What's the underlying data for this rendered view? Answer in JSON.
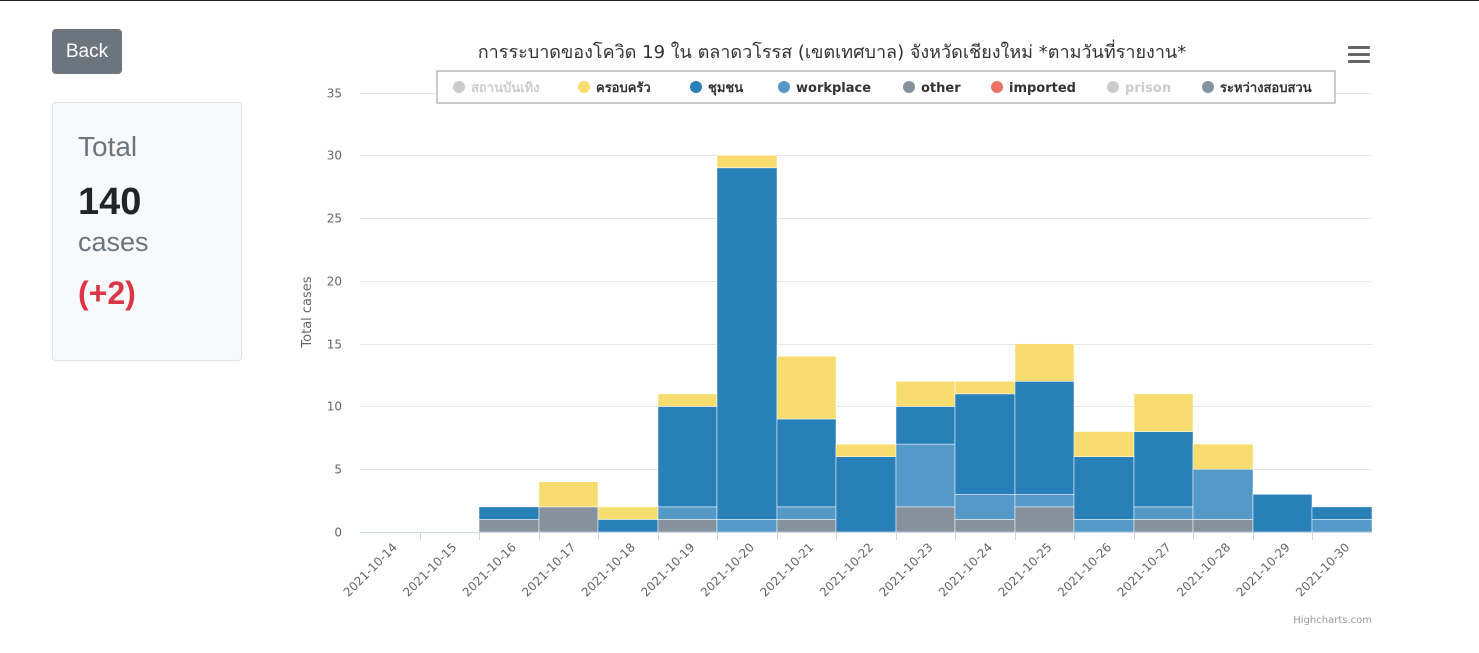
{
  "back_button": {
    "label": "Back"
  },
  "summary": {
    "label": "Total",
    "value": "140",
    "unit": "cases",
    "delta": "(+2)"
  },
  "credit": "Highcharts.com",
  "chart_data": {
    "type": "bar",
    "stacked": true,
    "title": "การระบาดของโควิด 19 ใน ตลาดวโรรส (เขตเทศบาล) จังหวัดเชียงใหม่ *ตามวันที่รายงาน*",
    "xlabel": "",
    "ylabel": "Total cases",
    "ylim": [
      0,
      35
    ],
    "yticks": [
      0,
      5,
      10,
      15,
      20,
      25,
      30,
      35
    ],
    "grid": true,
    "legend_position": "top",
    "categories": [
      "2021-10-14",
      "2021-10-15",
      "2021-10-16",
      "2021-10-17",
      "2021-10-18",
      "2021-10-19",
      "2021-10-20",
      "2021-10-21",
      "2021-10-22",
      "2021-10-23",
      "2021-10-24",
      "2021-10-25",
      "2021-10-26",
      "2021-10-27",
      "2021-10-28",
      "2021-10-29",
      "2021-10-30"
    ],
    "series": [
      {
        "name": "สถานบันเทิง",
        "color": "#cccccc",
        "visible": false,
        "values": [
          0,
          0,
          0,
          0,
          0,
          0,
          0,
          0,
          0,
          0,
          0,
          0,
          0,
          0,
          0,
          0,
          0
        ]
      },
      {
        "name": "ครอบครัว",
        "color": "#f7dc6f",
        "visible": true,
        "values": [
          0,
          0,
          0,
          2,
          1,
          1,
          1,
          5,
          1,
          2,
          1,
          3,
          2,
          3,
          2,
          0,
          0
        ]
      },
      {
        "name": "ชุมชน",
        "color": "#2980b9",
        "visible": true,
        "values": [
          0,
          0,
          1,
          0,
          1,
          8,
          28,
          7,
          6,
          3,
          8,
          9,
          5,
          6,
          0,
          3,
          1
        ]
      },
      {
        "name": "workplace",
        "color": "#5499c7",
        "visible": true,
        "values": [
          0,
          0,
          0,
          0,
          0,
          1,
          1,
          1,
          0,
          5,
          2,
          1,
          1,
          1,
          4,
          0,
          1
        ]
      },
      {
        "name": "other",
        "color": "#85929e",
        "visible": true,
        "values": [
          0,
          0,
          0,
          0,
          0,
          0,
          0,
          0,
          0,
          0,
          0,
          0,
          0,
          0,
          0,
          0,
          0
        ]
      },
      {
        "name": "imported",
        "color": "#ec7063",
        "visible": true,
        "values": [
          0,
          0,
          0,
          0,
          0,
          0,
          0,
          0,
          0,
          0,
          0,
          0,
          0,
          0,
          0,
          0,
          0
        ]
      },
      {
        "name": "prison",
        "color": "#cccccc",
        "visible": false,
        "values": [
          0,
          0,
          0,
          0,
          0,
          0,
          0,
          0,
          0,
          0,
          0,
          0,
          0,
          0,
          0,
          0,
          0
        ]
      },
      {
        "name": "ระหว่างสอบสวน",
        "color": "#85929e",
        "visible": true,
        "values": [
          0,
          0,
          1,
          2,
          0,
          1,
          0,
          1,
          0,
          2,
          1,
          2,
          0,
          1,
          1,
          0,
          0
        ]
      }
    ]
  }
}
